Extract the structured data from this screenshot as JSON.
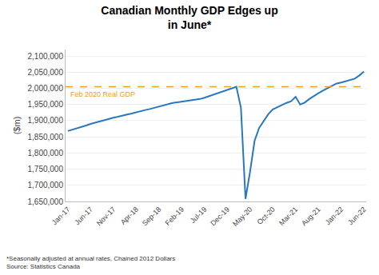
{
  "chart_data": {
    "type": "line",
    "title": "Canadian Monthly GDP Edges up\nin June*",
    "ylabel": "($m)",
    "footnote": "*Seasonally adjusted at annual rates, Chained 2012 Dollars\nSource: Statistics Canada",
    "categories": [
      "Jan-17",
      null,
      null,
      null,
      null,
      "Jun-17",
      null,
      null,
      null,
      null,
      "Nov-17",
      null,
      null,
      null,
      null,
      "Apr-18",
      null,
      null,
      null,
      null,
      "Sep-18",
      null,
      null,
      null,
      null,
      "Feb-19",
      null,
      null,
      null,
      null,
      "Jul-19",
      null,
      null,
      null,
      null,
      "Dec-19",
      null,
      null,
      null,
      null,
      "May-20",
      null,
      null,
      null,
      null,
      "Oct-20",
      null,
      null,
      null,
      null,
      "Mar-21",
      null,
      null,
      null,
      null,
      "Aug-21",
      null,
      null,
      null,
      null,
      "Jan-22",
      null,
      null,
      null,
      null,
      "Jun-22"
    ],
    "values": [
      1868000,
      1872000,
      1876000,
      1880000,
      1885000,
      1890000,
      1894000,
      1898000,
      1902000,
      1906000,
      1909000,
      1912000,
      1916000,
      1919000,
      1922000,
      1926000,
      1930000,
      1933000,
      1936000,
      1940000,
      1944000,
      1948000,
      1952000,
      1955000,
      1957000,
      1959000,
      1961000,
      1963000,
      1965000,
      1967000,
      1971000,
      1976000,
      1980000,
      1985000,
      1990000,
      1995000,
      2000000,
      2005000,
      1940000,
      1658000,
      1742000,
      1838000,
      1878000,
      1900000,
      1920000,
      1935000,
      1942000,
      1950000,
      1955000,
      1960000,
      1974000,
      1950000,
      1956000,
      1967000,
      1977000,
      1985000,
      1993000,
      2000000,
      2008000,
      2015000,
      2018000,
      2022000,
      2026000,
      2030000,
      2040000,
      2052000
    ],
    "color": "#2878be",
    "reference_line": {
      "value": 2005000,
      "label": "Feb 2020 Real GDP",
      "color": "#e8a020",
      "line_style": "dashed"
    },
    "ylim": [
      1650000,
      2120000
    ],
    "yticks": [
      {
        "value": 1650000,
        "label": "1,650,000"
      },
      {
        "value": 1700000,
        "label": "1,700,000"
      },
      {
        "value": 1750000,
        "label": "1,750,000"
      },
      {
        "value": 1800000,
        "label": "1,800,000"
      },
      {
        "value": 1850000,
        "label": "1,850,000"
      },
      {
        "value": 1900000,
        "label": "1,900,000"
      },
      {
        "value": 1950000,
        "label": "1,950,000"
      },
      {
        "value": 2000000,
        "label": "2,000,000"
      },
      {
        "value": 2050000,
        "label": "2,050,000"
      },
      {
        "value": 2100000,
        "label": "2,100,000"
      }
    ],
    "grid": true
  }
}
